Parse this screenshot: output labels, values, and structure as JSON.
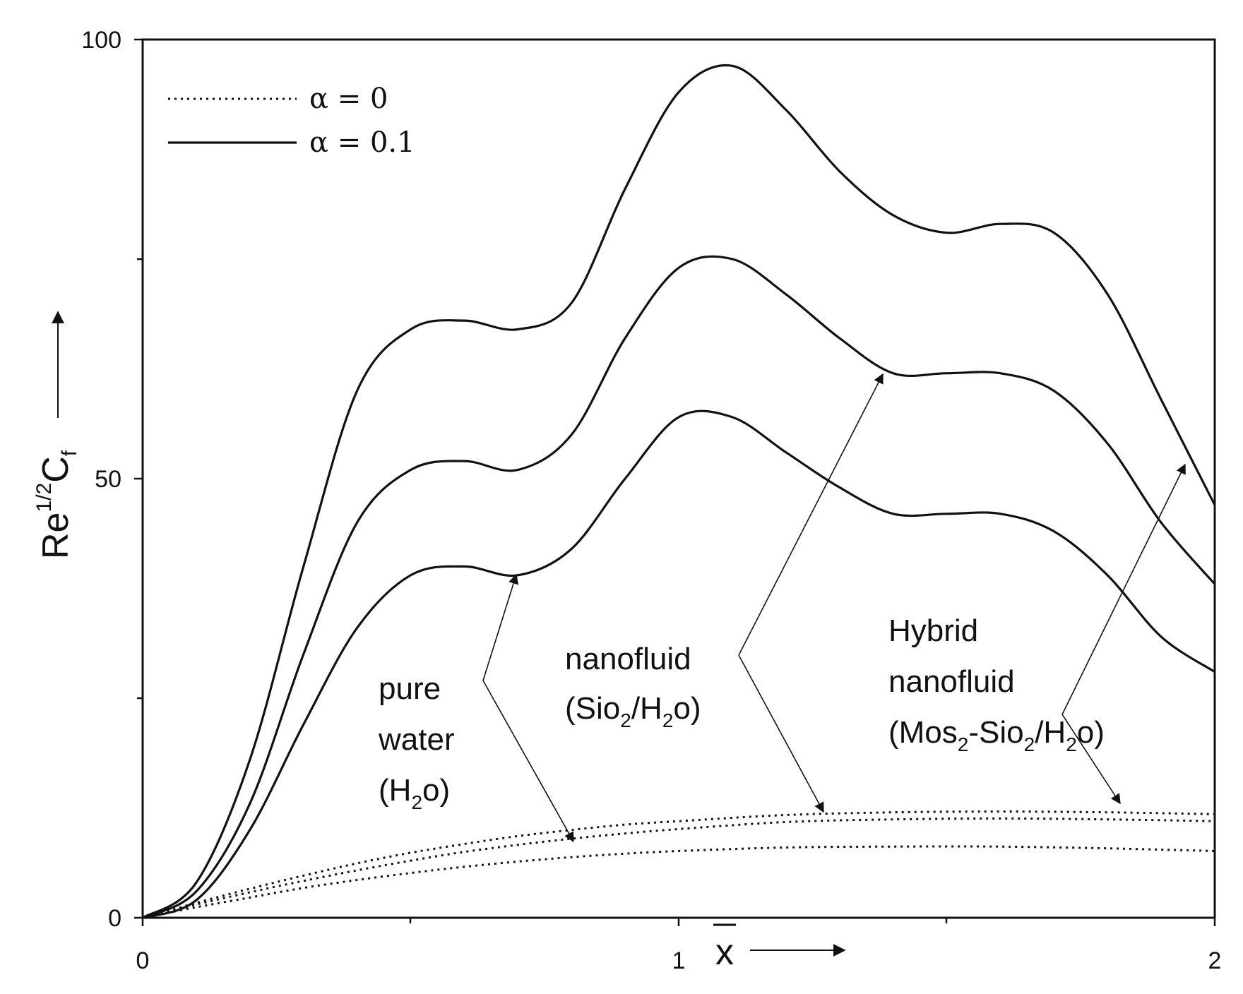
{
  "chart_data": {
    "type": "line",
    "title": "",
    "xlabel": "x̄",
    "ylabel": "Re^1/2 Cf",
    "xlim": [
      0,
      2
    ],
    "ylim": [
      0,
      100
    ],
    "x_ticks": [
      "0",
      "1",
      "2"
    ],
    "y_ticks": [
      "0",
      "50",
      "100"
    ],
    "legend": [
      {
        "label": "α = 0",
        "style": "dotted"
      },
      {
        "label": "α = 0.1",
        "style": "solid"
      }
    ],
    "series": [
      {
        "name": "pure water (H2o), α = 0.1",
        "style": "solid",
        "x": [
          0,
          0.1,
          0.2,
          0.3,
          0.4,
          0.5,
          0.6,
          0.7,
          0.8,
          0.9,
          1.0,
          1.1,
          1.2,
          1.3,
          1.4,
          1.5,
          1.6,
          1.7,
          1.8,
          1.9,
          2.0
        ],
        "y": [
          0,
          2,
          10,
          22,
          33,
          39,
          40,
          39,
          42,
          50,
          57,
          57,
          53,
          49,
          46,
          46,
          46,
          44,
          39,
          32,
          28
        ]
      },
      {
        "name": "nanofluid (Sio2/H2o), α = 0.1",
        "style": "solid",
        "x": [
          0,
          0.1,
          0.2,
          0.3,
          0.4,
          0.5,
          0.6,
          0.7,
          0.8,
          0.9,
          1.0,
          1.1,
          1.2,
          1.3,
          1.4,
          1.5,
          1.6,
          1.7,
          1.8,
          1.9,
          2.0
        ],
        "y": [
          0,
          3,
          13,
          30,
          45,
          51,
          52,
          51,
          55,
          66,
          74,
          75,
          71,
          66,
          62,
          62,
          62,
          60,
          54,
          45,
          38
        ]
      },
      {
        "name": "Hybrid nanofluid (Mos2-Sio2/H2o), α = 0.1",
        "style": "solid",
        "x": [
          0,
          0.1,
          0.2,
          0.3,
          0.4,
          0.5,
          0.6,
          0.7,
          0.8,
          0.9,
          1.0,
          1.1,
          1.2,
          1.3,
          1.4,
          1.5,
          1.6,
          1.7,
          1.8,
          1.9,
          2.0
        ],
        "y": [
          0,
          4,
          18,
          40,
          60,
          67,
          68,
          67,
          70,
          83,
          94,
          97,
          92,
          85,
          80,
          78,
          79,
          78,
          71,
          59,
          47
        ]
      },
      {
        "name": "pure water (H2o), α = 0",
        "style": "dotted",
        "x": [
          0,
          0.1,
          0.2,
          0.3,
          0.4,
          0.5,
          0.6,
          0.7,
          0.8,
          0.9,
          1.0,
          1.2,
          1.4,
          1.6,
          1.8,
          2.0
        ],
        "y": [
          0,
          1.2,
          2.3,
          3.4,
          4.3,
          5.1,
          5.8,
          6.4,
          6.9,
          7.3,
          7.6,
          8.0,
          8.1,
          8.1,
          7.9,
          7.6
        ]
      },
      {
        "name": "nanofluid (Sio2/H2o), α = 0",
        "style": "dotted",
        "x": [
          0,
          0.1,
          0.2,
          0.3,
          0.4,
          0.5,
          0.6,
          0.7,
          0.8,
          0.9,
          1.0,
          1.2,
          1.4,
          1.6,
          1.8,
          2.0
        ],
        "y": [
          0,
          1.5,
          2.9,
          4.2,
          5.4,
          6.5,
          7.5,
          8.3,
          9.0,
          9.6,
          10.1,
          10.9,
          11.2,
          11.3,
          11.2,
          11.0
        ]
      },
      {
        "name": "Hybrid nanofluid (Mos2-Sio2/H2o), α = 0",
        "style": "dotted",
        "x": [
          0,
          0.1,
          0.2,
          0.3,
          0.4,
          0.5,
          0.6,
          0.7,
          0.8,
          0.9,
          1.0,
          1.2,
          1.4,
          1.6,
          1.8,
          2.0
        ],
        "y": [
          0,
          1.7,
          3.3,
          4.8,
          6.2,
          7.4,
          8.4,
          9.3,
          10.0,
          10.6,
          11.0,
          11.7,
          12.0,
          12.1,
          12.0,
          11.8
        ]
      }
    ],
    "annotations": [
      {
        "id": "water",
        "lines": [
          "pure",
          "water",
          "(H",
          "2",
          "o)"
        ],
        "targets": [
          "pure water (H2o), α = 0.1",
          "pure water (H2o), α = 0"
        ]
      },
      {
        "id": "nano",
        "lines": [
          "nanofluid",
          "(Sio",
          "2",
          "/H",
          "2",
          "o)"
        ],
        "targets": [
          "nanofluid (Sio2/H2o), α = 0.1",
          "nanofluid (Sio2/H2o), α = 0"
        ]
      },
      {
        "id": "hybrid",
        "lines": [
          "Hybrid",
          "nanofluid",
          "(Mos",
          "2",
          "-Sio",
          "2",
          "/H",
          "2",
          "o)"
        ],
        "targets": [
          "Hybrid nanofluid (Mos2-Sio2/H2o), α = 0.1",
          "Hybrid nanofluid (Mos2-Sio2/H2o), α = 0"
        ]
      }
    ]
  }
}
